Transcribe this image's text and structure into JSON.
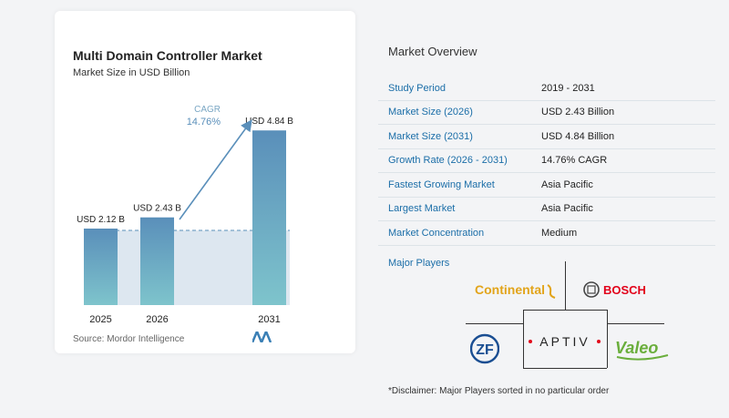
{
  "chart": {
    "title": "Multi Domain Controller Market",
    "subtitle": "Market Size in USD Billion",
    "source": "Source: Mordor Intelligence",
    "cagr_label": "CAGR",
    "cagr_value": "14.76%"
  },
  "chart_data": {
    "type": "bar",
    "title": "Multi Domain Controller Market",
    "subtitle": "Market Size in USD Billion",
    "categories": [
      "2025",
      "2026",
      "2031"
    ],
    "values": [
      2.12,
      2.43,
      4.84
    ],
    "value_labels": [
      "USD 2.12 B",
      "USD 2.43 B",
      "USD 4.84 B"
    ],
    "ylim": [
      0,
      5.3
    ],
    "grid": false,
    "annotation": "CAGR 14.76%",
    "colors": {
      "bar_top": "#5a8fba",
      "bar_bottom": "#7ec4cc",
      "arrow": "#5a8fba"
    }
  },
  "overview": {
    "title": "Market Overview",
    "rows": [
      {
        "label": "Study Period",
        "value": "2019 - 2031"
      },
      {
        "label": "Market Size (2026)",
        "value": "USD 2.43 Billion"
      },
      {
        "label": "Market Size (2031)",
        "value": "USD 4.84 Billion"
      },
      {
        "label": "Growth Rate (2026 - 2031)",
        "value": "14.76% CAGR"
      },
      {
        "label": "Fastest Growing Market",
        "value": "Asia Pacific"
      },
      {
        "label": "Largest Market",
        "value": "Asia Pacific"
      },
      {
        "label": "Market Concentration",
        "value": "Medium"
      }
    ]
  },
  "players": {
    "title": "Major Players",
    "logos": {
      "continental": "Continental",
      "bosch": "BOSCH",
      "zf": "ZF",
      "aptiv": "APTIV",
      "valeo": "Valeo"
    },
    "disclaimer": "*Disclaimer: Major Players sorted in no particular order"
  }
}
